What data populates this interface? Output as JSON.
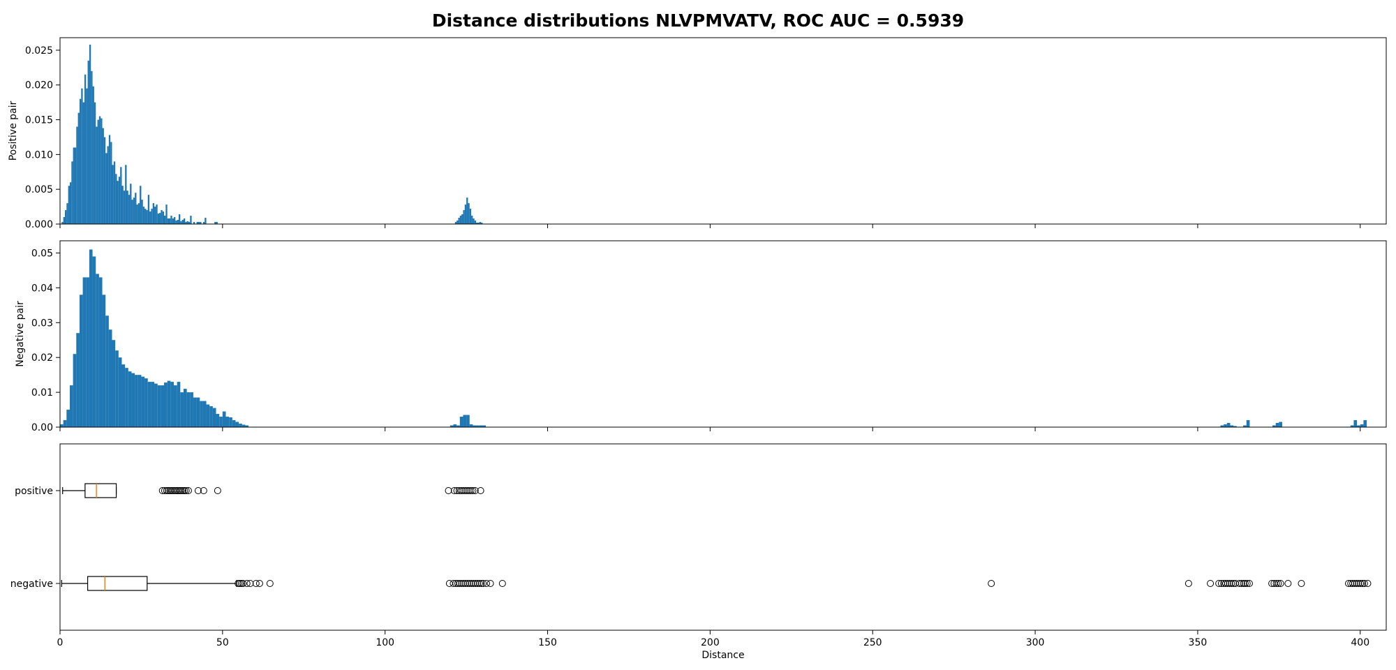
{
  "title": "Distance distributions NLVPMVATV, ROC AUC = 0.5939",
  "colors": {
    "bar": "#1f77b4",
    "median": "#ff7f0e",
    "axis": "#000000"
  },
  "chart_data": [
    {
      "type": "histogram",
      "ylabel": "Positive pair",
      "xlim": [
        0,
        408
      ],
      "ylim": [
        0,
        0.0268
      ],
      "yticks": [
        "0.000",
        "0.005",
        "0.010",
        "0.015",
        "0.020",
        "0.025"
      ],
      "yticks_values": [
        0,
        0.005,
        0.01,
        0.015,
        0.02,
        0.025
      ],
      "x_tick_values": [
        0,
        50,
        100,
        150,
        200,
        250,
        300,
        350,
        400
      ],
      "bin_width": 0.5,
      "x": [
        0.5,
        1.0,
        1.5,
        2.0,
        2.5,
        3.0,
        3.5,
        4.0,
        4.5,
        5.0,
        5.5,
        6.0,
        6.5,
        7.0,
        7.5,
        8.0,
        8.5,
        9.0,
        9.5,
        10.0,
        10.5,
        11.0,
        11.5,
        12.0,
        12.5,
        13.0,
        13.5,
        14.0,
        14.5,
        15.0,
        15.5,
        16.0,
        16.5,
        17.0,
        17.5,
        18.0,
        18.5,
        19.0,
        19.5,
        20.0,
        20.5,
        21.0,
        21.5,
        22.0,
        22.5,
        23.0,
        23.5,
        24.0,
        24.5,
        25.0,
        25.5,
        26.0,
        26.5,
        27.0,
        27.5,
        28.0,
        28.5,
        29.0,
        29.5,
        30.0,
        30.5,
        31.0,
        31.5,
        32.0,
        32.5,
        33.0,
        33.5,
        34.0,
        34.5,
        35.0,
        35.5,
        36.0,
        36.5,
        37.0,
        37.5,
        38.0,
        38.5,
        39.0,
        39.5,
        40.0,
        41.0,
        42.0,
        42.5,
        43.0,
        44.0,
        44.5,
        47.5,
        48.0,
        121.5,
        122.0,
        122.5,
        123.0,
        123.5,
        124.0,
        124.5,
        125.0,
        125.5,
        126.0,
        126.5,
        127.0,
        127.5,
        128.0,
        128.5,
        129.0,
        129.5
      ],
      "values": [
        0.0003,
        0.001,
        0.002,
        0.003,
        0.0055,
        0.006,
        0.009,
        0.011,
        0.011,
        0.014,
        0.016,
        0.018,
        0.0195,
        0.0175,
        0.0215,
        0.0195,
        0.0235,
        0.0258,
        0.022,
        0.0198,
        0.0175,
        0.014,
        0.015,
        0.0155,
        0.0152,
        0.0138,
        0.0125,
        0.0102,
        0.0112,
        0.0128,
        0.0118,
        0.0085,
        0.009,
        0.0072,
        0.0062,
        0.0068,
        0.0082,
        0.0055,
        0.0048,
        0.0085,
        0.0048,
        0.0042,
        0.0058,
        0.0035,
        0.0038,
        0.0045,
        0.0028,
        0.003,
        0.0055,
        0.0035,
        0.0025,
        0.0022,
        0.002,
        0.0042,
        0.0018,
        0.0022,
        0.003,
        0.0025,
        0.0028,
        0.0015,
        0.0016,
        0.002,
        0.0018,
        0.0012,
        0.0028,
        0.0008,
        0.0008,
        0.0012,
        0.0008,
        0.001,
        0.0005,
        0.0006,
        0.0014,
        0.0004,
        0.0006,
        0.0008,
        0.0003,
        0.0004,
        0.0003,
        0.0012,
        0.0003,
        0.0003,
        0.0003,
        0.0003,
        0.0003,
        0.0009,
        0.0003,
        0.0003,
        0.0003,
        0.0005,
        0.0009,
        0.0012,
        0.0014,
        0.002,
        0.0028,
        0.0038,
        0.003,
        0.0022,
        0.0012,
        0.0008,
        0.0005,
        0.0002,
        0.0002,
        0.0003,
        0.0002
      ]
    },
    {
      "type": "histogram",
      "ylabel": "Negative pair",
      "xlim": [
        0,
        408
      ],
      "ylim": [
        0,
        0.0535
      ],
      "yticks": [
        "0.00",
        "0.01",
        "0.02",
        "0.03",
        "0.04",
        "0.05"
      ],
      "yticks_values": [
        0,
        0.01,
        0.02,
        0.03,
        0.04,
        0.05
      ],
      "x_tick_values": [
        0,
        50,
        100,
        150,
        200,
        250,
        300,
        350,
        400
      ],
      "bin_width": 1,
      "x": [
        0,
        1,
        2,
        3,
        4,
        5,
        6,
        7,
        8,
        9,
        10,
        11,
        12,
        13,
        14,
        15,
        16,
        17,
        18,
        19,
        20,
        21,
        22,
        23,
        24,
        25,
        26,
        27,
        28,
        29,
        30,
        31,
        32,
        33,
        34,
        35,
        36,
        37,
        38,
        39,
        40,
        41,
        42,
        43,
        44,
        45,
        46,
        47,
        48,
        49,
        50,
        51,
        52,
        53,
        54,
        55,
        56,
        57,
        120,
        121,
        122,
        123,
        124,
        125,
        126,
        127,
        128,
        129,
        130,
        357,
        358,
        359,
        360,
        361,
        364,
        365,
        373,
        374,
        375,
        397,
        398,
        399,
        400,
        401
      ],
      "values": [
        0.0008,
        0.002,
        0.005,
        0.012,
        0.021,
        0.027,
        0.038,
        0.043,
        0.043,
        0.051,
        0.049,
        0.044,
        0.043,
        0.038,
        0.032,
        0.028,
        0.025,
        0.022,
        0.02,
        0.018,
        0.017,
        0.016,
        0.0155,
        0.015,
        0.015,
        0.0145,
        0.014,
        0.013,
        0.013,
        0.0125,
        0.012,
        0.012,
        0.0128,
        0.0133,
        0.013,
        0.012,
        0.013,
        0.01,
        0.011,
        0.01,
        0.01,
        0.0085,
        0.0085,
        0.0075,
        0.0075,
        0.0065,
        0.006,
        0.0055,
        0.0038,
        0.003,
        0.0045,
        0.003,
        0.0028,
        0.002,
        0.0015,
        0.001,
        0.0007,
        0.0005,
        0.0005,
        0.0008,
        0.0005,
        0.003,
        0.0035,
        0.0035,
        0.0008,
        0.0005,
        0.0005,
        0.0005,
        0.0005,
        0.0005,
        0.0008,
        0.0012,
        0.0005,
        0.0003,
        0.0005,
        0.002,
        0.0005,
        0.0012,
        0.0015,
        0.0005,
        0.002,
        0.0005,
        0.0008,
        0.002
      ]
    },
    {
      "type": "boxplot",
      "xlabel": "Distance",
      "xlim": [
        0,
        408
      ],
      "xticks": [
        "0",
        "50",
        "100",
        "150",
        "200",
        "250",
        "300",
        "350",
        "400"
      ],
      "xticks_values": [
        0,
        50,
        100,
        150,
        200,
        250,
        300,
        350,
        400
      ],
      "categories": [
        "positive",
        "negative"
      ],
      "boxes": [
        {
          "name": "positive",
          "whisker_low": 0.8,
          "q1": 7.7,
          "median": 11.2,
          "q3": 17.3,
          "whisker_high": 17.3,
          "fliers": [
            31.5,
            32.2,
            32.8,
            33.3,
            33.8,
            34.3,
            34.8,
            35.3,
            35.8,
            36.3,
            36.8,
            37.3,
            37.8,
            38.3,
            38.8,
            39.5,
            42.5,
            44.2,
            48.5,
            119.5,
            121.3,
            122.1,
            122.8,
            123.4,
            124.0,
            124.6,
            125.2,
            125.8,
            126.4,
            127.0,
            127.7,
            129.4
          ]
        },
        {
          "name": "negative",
          "whisker_low": 0.5,
          "q1": 8.5,
          "median": 13.8,
          "q3": 26.8,
          "whisker_high": 54.3,
          "fliers": [
            54.8,
            55.3,
            55.8,
            56.3,
            57.5,
            58.5,
            60.3,
            61.4,
            64.6,
            119.8,
            121.0,
            121.8,
            122.4,
            123.0,
            123.6,
            124.2,
            124.8,
            125.4,
            126.0,
            126.6,
            127.2,
            127.8,
            128.4,
            129.0,
            129.6,
            130.2,
            131.2,
            132.4,
            136.1,
            286.5,
            347.2,
            353.9,
            356.5,
            357.3,
            358.0,
            358.6,
            359.2,
            359.8,
            360.4,
            361.0,
            361.6,
            362.8,
            363.5,
            364.1,
            364.6,
            365.2,
            365.9,
            372.8,
            373.5,
            374.2,
            374.8,
            375.5,
            377.8,
            381.9,
            396.4,
            397.1,
            397.7,
            398.3,
            398.9,
            399.5,
            400.1,
            400.7,
            401.3,
            402.3
          ]
        }
      ]
    }
  ]
}
